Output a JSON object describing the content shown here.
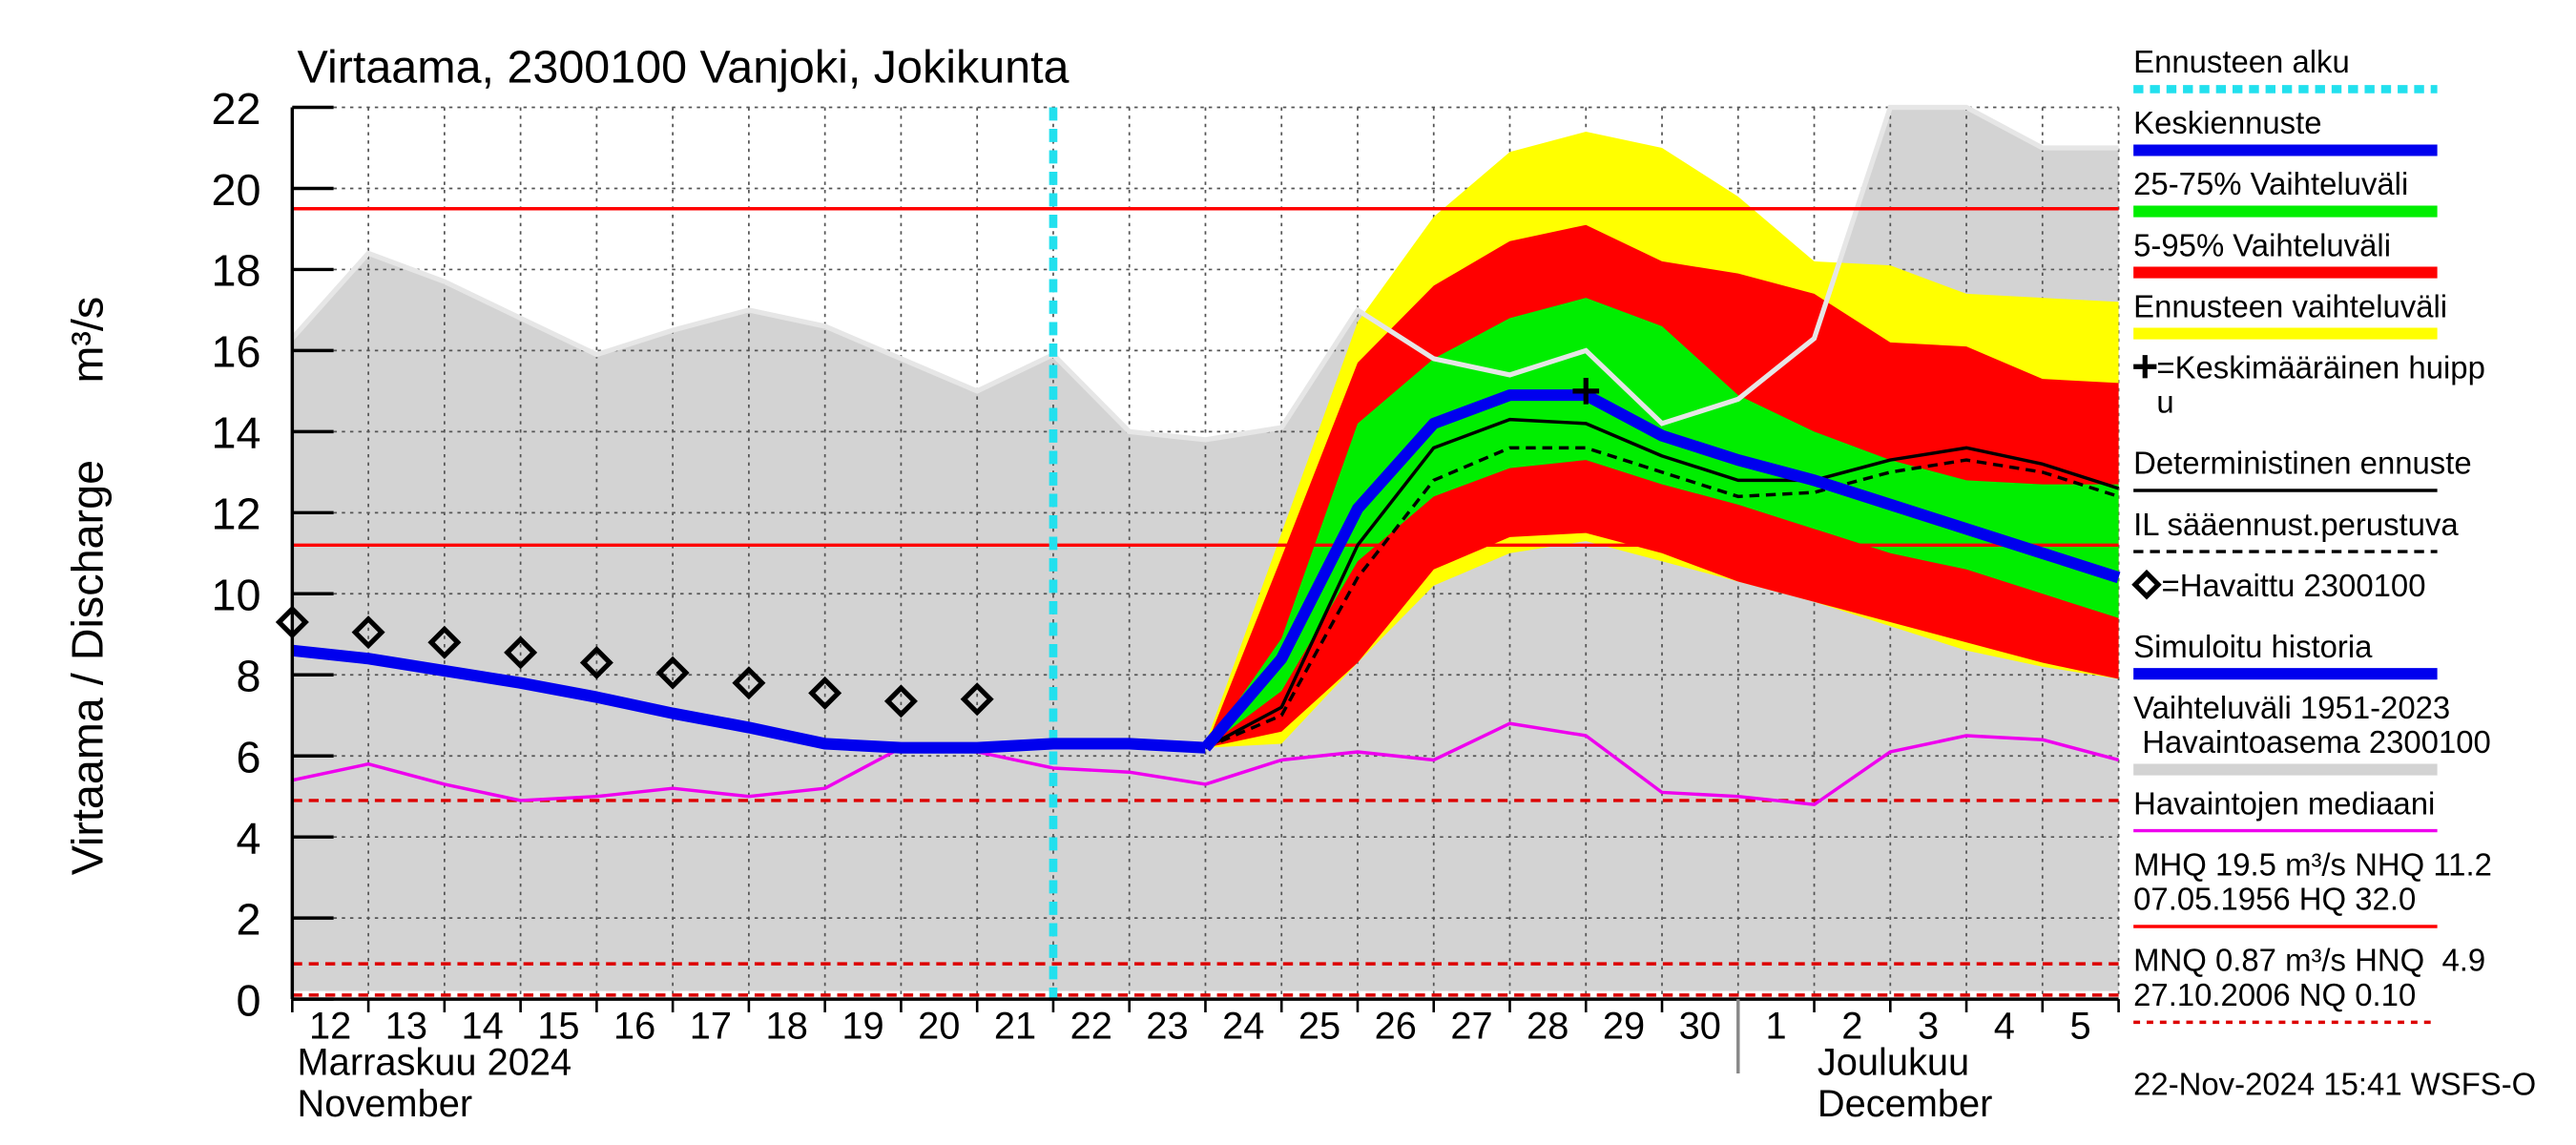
{
  "chart_data": {
    "type": "hydrograph",
    "title": "Virtaama, 2300100 Vanjoki, Jokikunta",
    "y_label": "Virtaama / Discharge",
    "y_unit": "m³/s",
    "timestamp": "22-Nov-2024 15:41 WSFS-O",
    "categories": [
      "12",
      "13",
      "14",
      "15",
      "16",
      "17",
      "18",
      "19",
      "20",
      "21",
      "22",
      "23",
      "24",
      "25",
      "26",
      "27",
      "28",
      "29",
      "30",
      "1",
      "2",
      "3",
      "4",
      "5",
      null
    ],
    "months": [
      {
        "label": "Marraskuu 2024",
        "label_en": "November",
        "start": "12"
      },
      {
        "label": "Joulukuu",
        "label_en": "December",
        "start": "1"
      }
    ],
    "ylim": [
      0,
      22
    ],
    "yticks": [
      0,
      2,
      4,
      6,
      8,
      10,
      12,
      14,
      16,
      18,
      20,
      22
    ],
    "grid": true,
    "forecast_start": "22",
    "forecast_start_color": "#22e0ee",
    "bands": [
      {
        "color": "#d3d3d3",
        "edge_color": "#e6e6e6",
        "upper": [
          16.3,
          18.4,
          17.7,
          16.8,
          15.9,
          16.5,
          17.0,
          16.6,
          15.8,
          15.0,
          15.9,
          14.0,
          13.8,
          14.1,
          17.0,
          15.8,
          15.4,
          16.0,
          14.2,
          14.8,
          16.3,
          22,
          22,
          21,
          21
        ],
        "lower": [
          0.2,
          0.2,
          0.2,
          0.2,
          0.2,
          0.2,
          0.2,
          0.2,
          0.2,
          0.2,
          0.2,
          0.2,
          0.2,
          0.2,
          0.2,
          0.2,
          0.2,
          0.2,
          0.2,
          0.2,
          0.2,
          0.2,
          0.2,
          0.2,
          0.2
        ]
      },
      {
        "color": "#ffff00",
        "upper": [
          null,
          null,
          null,
          null,
          null,
          null,
          null,
          null,
          null,
          null,
          null,
          null,
          6.3,
          11.5,
          16.7,
          19.3,
          20.9,
          21.4,
          21.0,
          19.8,
          18.2,
          18.1,
          17.4,
          17.3,
          17.2
        ],
        "lower": [
          null,
          null,
          null,
          null,
          null,
          null,
          null,
          null,
          null,
          null,
          null,
          null,
          6.2,
          6.3,
          8.3,
          10.2,
          11.0,
          11.3,
          10.8,
          10.3,
          9.8,
          9.2,
          8.6,
          8.2,
          7.9
        ]
      },
      {
        "color": "#ff0000",
        "upper": [
          null,
          null,
          null,
          null,
          null,
          null,
          null,
          null,
          null,
          null,
          null,
          null,
          6.2,
          10.9,
          15.7,
          17.6,
          18.7,
          19.1,
          18.2,
          17.9,
          17.4,
          16.2,
          16.1,
          15.3,
          15.2
        ],
        "lower": [
          null,
          null,
          null,
          null,
          null,
          null,
          null,
          null,
          null,
          null,
          null,
          null,
          6.2,
          6.6,
          8.3,
          10.6,
          11.4,
          11.5,
          11.0,
          10.3,
          9.8,
          9.3,
          8.8,
          8.3,
          7.9
        ]
      },
      {
        "color": "#00ee00",
        "upper": [
          null,
          null,
          null,
          null,
          null,
          null,
          null,
          null,
          null,
          null,
          null,
          null,
          6.2,
          8.9,
          14.2,
          15.8,
          16.8,
          17.3,
          16.6,
          14.9,
          14.0,
          13.3,
          12.8,
          12.7,
          12.7
        ],
        "lower": [
          null,
          null,
          null,
          null,
          null,
          null,
          null,
          null,
          null,
          null,
          null,
          null,
          6.2,
          7.6,
          10.8,
          12.4,
          13.1,
          13.3,
          12.7,
          12.2,
          11.6,
          11.0,
          10.6,
          10.0,
          9.4
        ]
      }
    ],
    "reference_lines": [
      {
        "value": 19.5,
        "color": "#ff0000",
        "style": "solid"
      },
      {
        "value": 11.2,
        "color": "#ff0000",
        "style": "solid"
      },
      {
        "value": 4.9,
        "color": "#dd0000",
        "style": "dashed"
      },
      {
        "value": 0.87,
        "color": "#dd0000",
        "style": "dashed"
      },
      {
        "value": 0.1,
        "color": "#dd0000",
        "style": "dashed"
      }
    ],
    "series": [
      {
        "color": "#ee00ee",
        "style": "thin",
        "values": [
          5.4,
          5.8,
          5.3,
          4.9,
          5.0,
          5.2,
          5.0,
          5.2,
          6.2,
          6.1,
          5.7,
          5.6,
          5.3,
          5.9,
          6.1,
          5.9,
          6.8,
          6.5,
          5.1,
          5.0,
          4.8,
          6.1,
          6.5,
          6.4,
          5.9
        ]
      },
      {
        "color": "#000000",
        "style": "dashed",
        "values": [
          null,
          null,
          null,
          null,
          null,
          null,
          null,
          null,
          null,
          null,
          null,
          null,
          6.2,
          7.0,
          10.4,
          12.8,
          13.6,
          13.6,
          13.0,
          12.4,
          12.5,
          13.0,
          13.3,
          13.0,
          12.4
        ]
      },
      {
        "color": "#000000",
        "style": "thin",
        "values": [
          null,
          null,
          null,
          null,
          null,
          null,
          null,
          null,
          null,
          null,
          null,
          null,
          6.2,
          7.2,
          11.2,
          13.6,
          14.3,
          14.2,
          13.4,
          12.8,
          12.8,
          13.3,
          13.6,
          13.2,
          12.6
        ]
      },
      {
        "color": "#0000ee",
        "style": "thick",
        "values": [
          8.6,
          8.4,
          8.1,
          7.8,
          7.45,
          7.05,
          6.7,
          6.3,
          6.2,
          6.2,
          6.3,
          6.3,
          6.2,
          null,
          null,
          null,
          null,
          null,
          null,
          null,
          null,
          null,
          null,
          null,
          null
        ]
      },
      {
        "color": "#0000ee",
        "style": "thick",
        "values": [
          null,
          null,
          null,
          null,
          null,
          null,
          null,
          null,
          null,
          null,
          null,
          null,
          6.2,
          8.4,
          12.1,
          14.2,
          14.9,
          14.9,
          13.9,
          13.3,
          12.8,
          12.2,
          11.6,
          11.0,
          10.4
        ]
      },
      {
        "color": "#000000",
        "style": "diamond",
        "values": [
          9.3,
          9.05,
          8.8,
          8.55,
          8.3,
          8.05,
          7.8,
          7.55,
          7.35,
          7.4,
          null,
          null,
          null,
          null,
          null,
          null,
          null,
          null,
          null,
          null,
          null,
          null,
          null,
          null,
          null
        ]
      }
    ],
    "peak": {
      "x": "29",
      "value": 15.0,
      "color": "#000000"
    },
    "legend": [
      {
        "lines": [
          "Ennusteen alku"
        ],
        "color": "#22e0ee",
        "style": "dashed"
      },
      {
        "lines": [
          "Keskiennuste"
        ],
        "color": "#0000ee",
        "style": "thick"
      },
      {
        "lines": [
          "25-75% Vaihteluväli"
        ],
        "color": "#00ee00",
        "style": "thick"
      },
      {
        "lines": [
          "5-95% Vaihteluväli"
        ],
        "color": "#ff0000",
        "style": "thick"
      },
      {
        "lines": [
          "Ennusteen vaihteluväli"
        ],
        "color": "#ffff00",
        "style": "thick"
      },
      {
        "lines": [
          "=Keskimääräinen huipp",
          "u"
        ],
        "color": "#000000",
        "style": "plus"
      },
      {
        "lines": [
          "Deterministinen ennuste"
        ],
        "color": "#000000",
        "style": "thin"
      },
      {
        "lines": [
          "IL sääennust.perustuva"
        ],
        "color": "#000000",
        "style": "dashed"
      },
      {
        "lines": [
          "=Havaittu 2300100"
        ],
        "color": "#000000",
        "style": "diamond"
      },
      {
        "lines": [
          "Simuloitu historia"
        ],
        "color": "#0000ee",
        "style": "thick"
      },
      {
        "lines": [
          "Vaihteluväli 1951-2023",
          " Havaintoasema 2300100"
        ],
        "color": "#d3d3d3",
        "style": "thick"
      },
      {
        "lines": [
          "Havaintojen mediaani"
        ],
        "color": "#ee00ee",
        "style": "thin"
      },
      {
        "lines": [
          "MHQ 19.5 m³/s NHQ 11.2",
          "07.05.1956 HQ 32.0"
        ],
        "color": "#ff0000",
        "style": "thin"
      },
      {
        "lines": [
          "MNQ 0.87 m³/s HNQ  4.9",
          "27.10.2006 NQ 0.10"
        ],
        "color": "#dd0000",
        "style": "dotted"
      }
    ]
  }
}
